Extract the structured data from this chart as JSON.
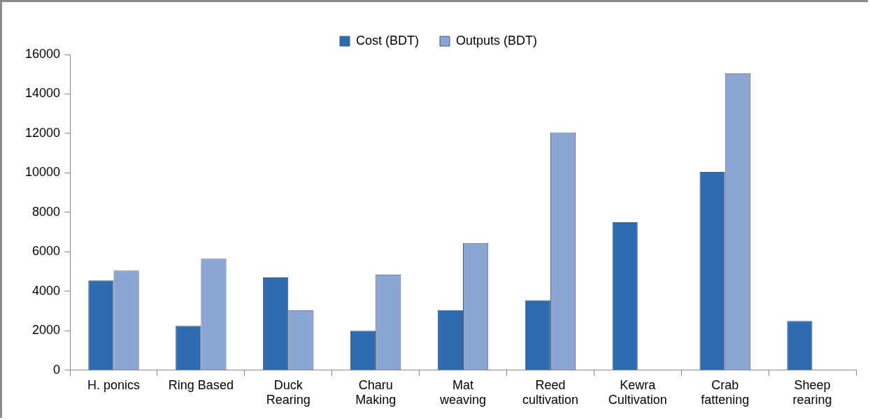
{
  "chart_data": {
    "type": "bar",
    "categories": [
      "H. ponics",
      "Ring Based",
      "Duck Rearing",
      "Charu Making",
      "Mat weaving",
      "Reed cultivation",
      "Kewra Cultivation",
      "Crab fattening",
      "Sheep rearing"
    ],
    "series": [
      {
        "name": "Cost (BDT)",
        "color": "#2e6bb0",
        "values": [
          4550,
          2250,
          4700,
          2000,
          3050,
          3550,
          7500,
          10050,
          2500
        ]
      },
      {
        "name": "Outputs (BDT)",
        "color": "#8ba6d4",
        "values": [
          5050,
          5650,
          3050,
          4850,
          6450,
          12050,
          null,
          15050,
          null
        ]
      }
    ],
    "ylim": [
      0,
      16000
    ],
    "yticks": [
      0,
      2000,
      4000,
      6000,
      8000,
      10000,
      12000,
      14000,
      16000
    ],
    "grid": false,
    "legend": "top"
  }
}
